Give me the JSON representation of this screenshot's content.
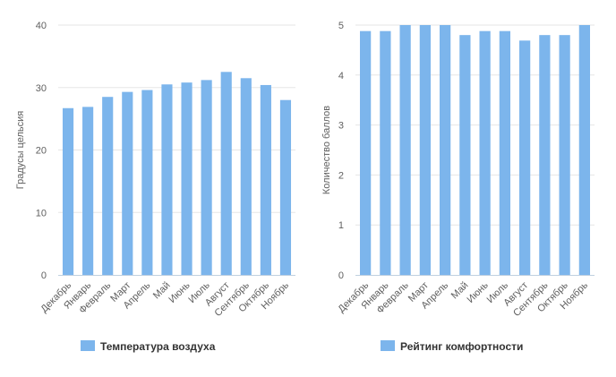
{
  "colors": {
    "bar": "#7cb5ec",
    "grid": "#e6e6e6",
    "axis": "#c0d0e0",
    "text": "#606060"
  },
  "chart_data": [
    {
      "type": "bar",
      "categories": [
        "Декабрь",
        "Январь",
        "Февраль",
        "Март",
        "Апрель",
        "Май",
        "Июнь",
        "Июль",
        "Август",
        "Сентябрь",
        "Октябрь",
        "Ноябрь"
      ],
      "series": [
        {
          "name": "Температура воздуха",
          "values": [
            26.7,
            26.9,
            28.5,
            29.3,
            29.6,
            30.5,
            30.8,
            31.2,
            32.5,
            31.5,
            30.4,
            28.0
          ]
        }
      ],
      "ylabel": "Градусы цельсия",
      "xlabel": "",
      "ylim": [
        0,
        40
      ],
      "yticks": [
        0,
        10,
        20,
        30,
        40
      ],
      "grid": true,
      "legend": "bottom"
    },
    {
      "type": "bar",
      "categories": [
        "Декабрь",
        "Январь",
        "Февраль",
        "Март",
        "Апрель",
        "Май",
        "Июнь",
        "Июль",
        "Август",
        "Сентябрь",
        "Октябрь",
        "Ноябрь"
      ],
      "series": [
        {
          "name": "Рейтинг комфортности",
          "values": [
            4.88,
            4.88,
            5.0,
            5.0,
            5.0,
            4.8,
            4.88,
            4.88,
            4.69,
            4.8,
            4.8,
            5.0
          ]
        }
      ],
      "ylabel": "Количество баллов",
      "xlabel": "",
      "ylim": [
        0,
        5
      ],
      "yticks": [
        0,
        1,
        2,
        3,
        4,
        5
      ],
      "grid": true,
      "legend": "bottom"
    }
  ]
}
